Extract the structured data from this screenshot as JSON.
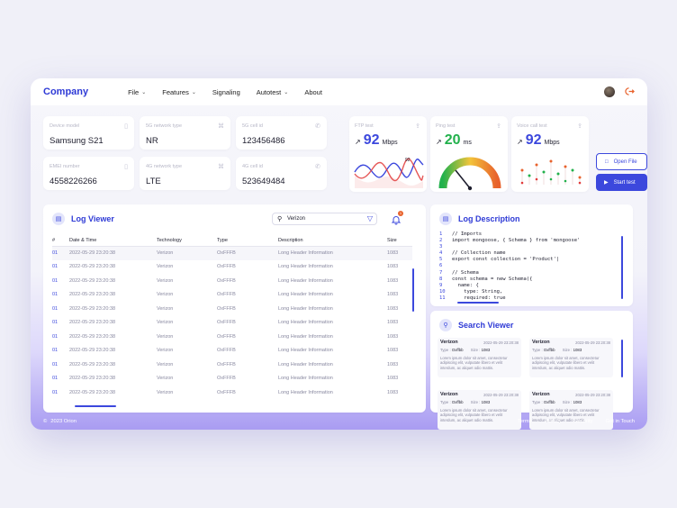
{
  "brand": "Company",
  "nav": [
    {
      "label": "File",
      "dropdown": true
    },
    {
      "label": "Features",
      "dropdown": true
    },
    {
      "label": "Signaling",
      "dropdown": false
    },
    {
      "label": "Autotest",
      "dropdown": true
    },
    {
      "label": "About",
      "dropdown": false
    }
  ],
  "info": [
    {
      "label": "Device model",
      "value": "Samsung S21",
      "icon": "phone-icon"
    },
    {
      "label": "5G network type",
      "value": "NR",
      "icon": "signal-icon"
    },
    {
      "label": "5G cell id",
      "value": "123456486",
      "icon": "call-icon"
    },
    {
      "label": "EMEI number",
      "value": "4558226266",
      "icon": "phone-icon"
    },
    {
      "label": "4G network type",
      "value": "LTE",
      "icon": "signal-icon"
    },
    {
      "label": "4G cell id",
      "value": "523649484",
      "icon": "call-icon"
    }
  ],
  "metrics": [
    {
      "label": "FTP test",
      "value": "92",
      "unit": "Mbps",
      "color": "#3c48dd",
      "chart_peak": "92"
    },
    {
      "label": "Ping test",
      "value": "20",
      "unit": "ms",
      "color": "#22b14c"
    },
    {
      "label": "Voice call test",
      "value": "92",
      "unit": "Mbps",
      "color": "#3c48dd"
    }
  ],
  "actions": {
    "open_file": "Open File",
    "start_test": "Start test"
  },
  "log_viewer": {
    "title": "Log Viewer",
    "search_value": "Verizon",
    "notification_count": "1",
    "columns": [
      "#",
      "Date & Time",
      "Technology",
      "Type",
      "Description",
      "Size"
    ],
    "rows": [
      [
        "01",
        "2022-05-29 23:20:38",
        "Verizon",
        "OxFFFB",
        "Long Header Information",
        "1083"
      ],
      [
        "01",
        "2022-05-29 23:20:38",
        "Verizon",
        "OxFFFB",
        "Long Header Information",
        "1083"
      ],
      [
        "01",
        "2022-05-29 23:20:38",
        "Verizon",
        "OxFFFB",
        "Long Header Information",
        "1083"
      ],
      [
        "01",
        "2022-05-29 23:20:38",
        "Verizon",
        "OxFFFB",
        "Long Header Information",
        "1083"
      ],
      [
        "01",
        "2022-05-29 23:20:38",
        "Verizon",
        "OxFFFB",
        "Long Header Information",
        "1083"
      ],
      [
        "01",
        "2022-05-29 23:20:38",
        "Verizon",
        "OxFFFB",
        "Long Header Information",
        "1083"
      ],
      [
        "01",
        "2022-05-29 23:20:38",
        "Verizon",
        "OxFFFB",
        "Long Header Information",
        "1083"
      ],
      [
        "01",
        "2022-05-29 23:20:38",
        "Verizon",
        "OxFFFB",
        "Long Header Information",
        "1083"
      ],
      [
        "01",
        "2022-05-29 23:20:38",
        "Verizon",
        "OxFFFB",
        "Long Header Information",
        "1083"
      ],
      [
        "01",
        "2022-05-29 23:20:38",
        "Verizon",
        "OxFFFB",
        "Long Header Information",
        "1083"
      ],
      [
        "01",
        "2022-05-29 23:20:38",
        "Verizon",
        "OxFFFB",
        "Long Header Information",
        "1083"
      ]
    ]
  },
  "log_description": {
    "title": "Log Description",
    "lines": [
      {
        "n": "1",
        "t": "// Imports"
      },
      {
        "n": "2",
        "t": "import mongoose, { Schema } from 'mongoose'"
      },
      {
        "n": "3",
        "t": ""
      },
      {
        "n": "4",
        "t": "// Collection name"
      },
      {
        "n": "5",
        "t": "export const collection = 'Product'|"
      },
      {
        "n": "6",
        "t": ""
      },
      {
        "n": "7",
        "t": "// Schema"
      },
      {
        "n": "8",
        "t": "const schema = new Schema({"
      },
      {
        "n": "9",
        "t": "  name: {"
      },
      {
        "n": "10",
        "t": "    type: String,"
      },
      {
        "n": "11",
        "t": "    required: true"
      }
    ]
  },
  "search_viewer": {
    "title": "Search Viewer",
    "type_label": "Type :",
    "type_value": "Oxffbb",
    "size_label": "Size :",
    "size_value": "1083",
    "text": "Lorem ipsum dolor sit amet, consectetur adipiscing elit, vulputate libero et velit interdum, ac aliquet odio mattis.",
    "results": [
      {
        "name": "Verizon",
        "date": "2022-05-29 23:20:38"
      },
      {
        "name": "Verizon",
        "date": "2022-05-29 23:20:38"
      },
      {
        "name": "Verizon",
        "date": "2022-05-29 23:20:38"
      },
      {
        "name": "Verizon",
        "date": "2022-05-29 23:20:38"
      }
    ]
  },
  "footer": {
    "copyright": "2023 Orion",
    "links": [
      "Terms",
      "Privacy",
      "Security",
      "Get in Touch"
    ]
  }
}
